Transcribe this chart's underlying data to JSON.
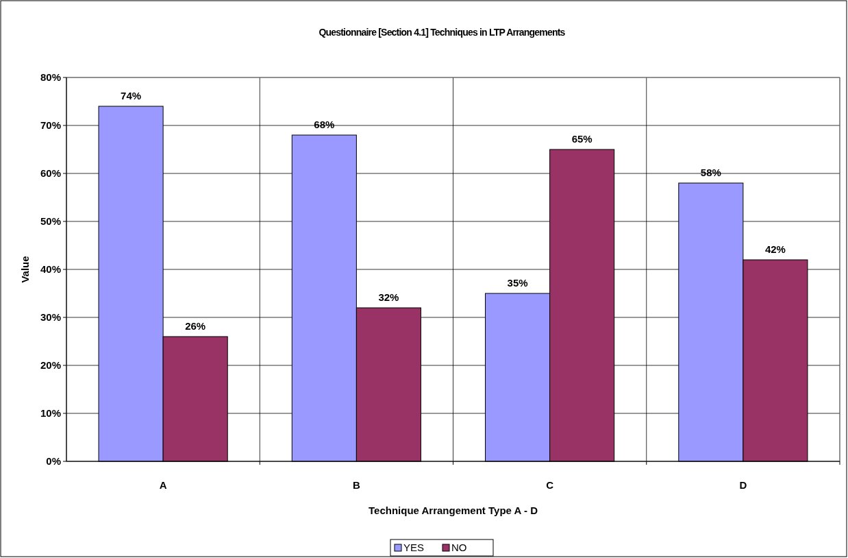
{
  "chart_data": {
    "type": "bar",
    "title": "Questionnaire [Section 4.1] Techniques in LTP Arrangements",
    "xlabel": "Technique Arrangement Type A - D",
    "ylabel": "Value",
    "categories": [
      "A",
      "B",
      "C",
      "D"
    ],
    "series": [
      {
        "name": "YES",
        "color": "#9999ff",
        "values": [
          74,
          68,
          35,
          58
        ],
        "value_labels": [
          "74%",
          "68%",
          "35%",
          "58%"
        ]
      },
      {
        "name": "NO",
        "color": "#993366",
        "values": [
          26,
          32,
          65,
          42
        ],
        "value_labels": [
          "26%",
          "32%",
          "65%",
          "42%"
        ]
      }
    ],
    "ylim": [
      0,
      80
    ],
    "yticks": [
      {
        "value": 0,
        "label": "0%"
      },
      {
        "value": 10,
        "label": "10%"
      },
      {
        "value": 20,
        "label": "20%"
      },
      {
        "value": 30,
        "label": "30%"
      },
      {
        "value": 40,
        "label": "40%"
      },
      {
        "value": 50,
        "label": "50%"
      },
      {
        "value": 60,
        "label": "60%"
      },
      {
        "value": 70,
        "label": "70%"
      },
      {
        "value": 80,
        "label": "80%"
      }
    ],
    "grid": true,
    "legend": "bottom"
  }
}
